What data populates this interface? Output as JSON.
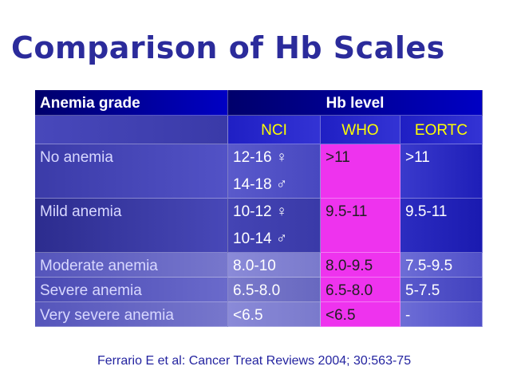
{
  "title": "Comparison of Hb Scales",
  "table": {
    "header": {
      "grade": "Anemia grade",
      "level": "Hb level"
    },
    "scales": [
      "NCI",
      "WHO",
      "EORTC"
    ],
    "rows": [
      {
        "grade": "No anemia",
        "nci": [
          "12-16 ♀",
          "14-18 ♂"
        ],
        "who": ">11",
        "eortc": ">11"
      },
      {
        "grade": "Mild anemia",
        "nci": [
          "10-12 ♀",
          "10-14 ♂"
        ],
        "who": "9.5-11",
        "eortc": "9.5-11"
      },
      {
        "grade": "Moderate anemia",
        "nci": [
          "8.0-10"
        ],
        "who": "8.0-9.5",
        "eortc": "7.5-9.5"
      },
      {
        "grade": "Severe anemia",
        "nci": [
          "6.5-8.0"
        ],
        "who": "6.5-8.0",
        "eortc": "5-7.5"
      },
      {
        "grade": "Very severe anemia",
        "nci": [
          "<6.5"
        ],
        "who": "<6.5",
        "eortc": "-"
      }
    ]
  },
  "reference": "Ferrario E et al: Cancer Treat Reviews 2004; 30:563-75",
  "colors": {
    "title": "#2b2b9b",
    "header": "#0000a0",
    "scale_label": "#ffff00",
    "who_column": "#ee33ee"
  }
}
